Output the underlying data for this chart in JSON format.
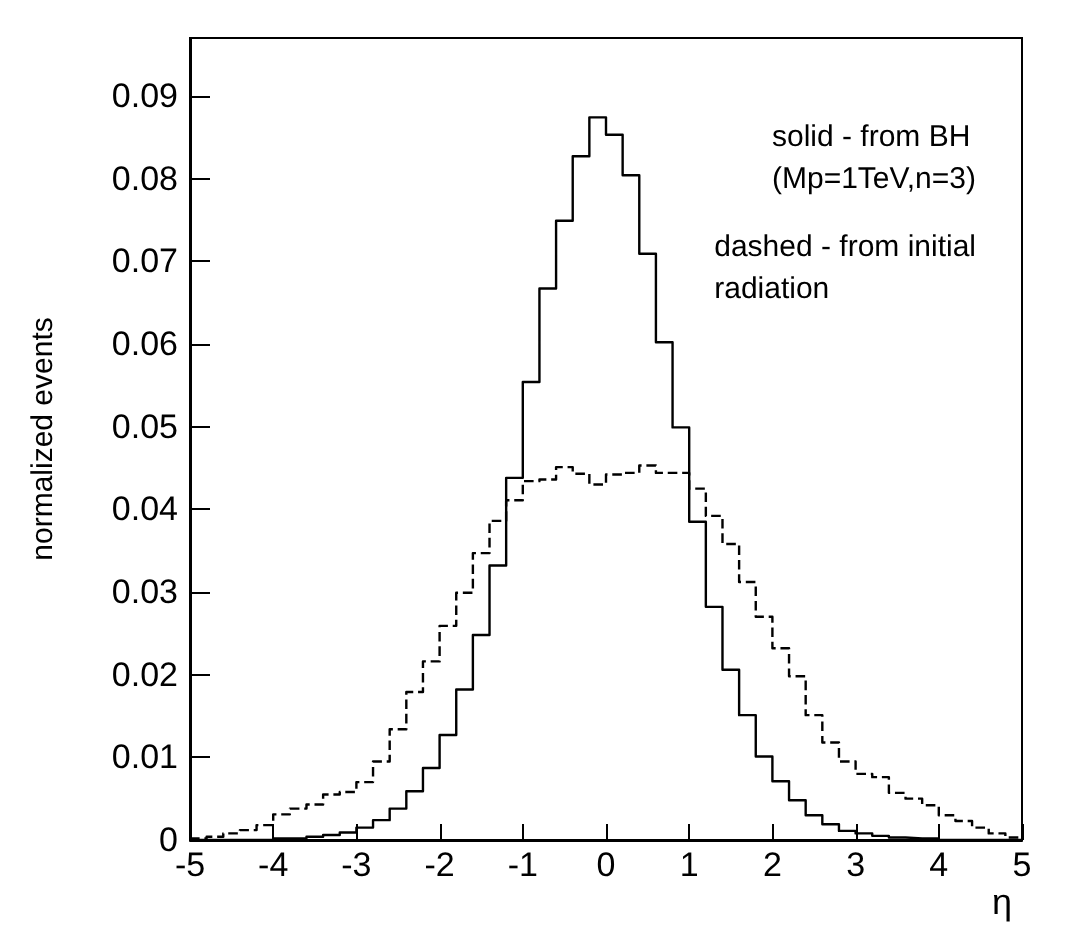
{
  "chart_data": {
    "type": "histogram",
    "xlabel": "η",
    "ylabel": "normalized events",
    "bins": [
      -5,
      -4.8,
      -4.6,
      -4.4,
      -4.2,
      -4,
      -3.8,
      -3.6,
      -3.4,
      -3.2,
      -3,
      -2.8,
      -2.6,
      -2.4,
      -2.2,
      -2,
      -1.8,
      -1.6,
      -1.4,
      -1.2,
      -1,
      -0.8,
      -0.6,
      -0.4,
      -0.2,
      0,
      0.2,
      0.4,
      0.6,
      0.8,
      1,
      1.2,
      1.4,
      1.6,
      1.8,
      2,
      2.2,
      2.4,
      2.6,
      2.8,
      3,
      3.2,
      3.4,
      3.6,
      3.8,
      4,
      4.2,
      4.4,
      4.6,
      4.8,
      5
    ],
    "series": [
      {
        "color": "#000000",
        "line_style": "solid",
        "values": [
          0,
          0,
          0,
          0,
          0,
          0.0002,
          0.0002,
          0.0004,
          0.0006,
          0.0009,
          0.0015,
          0.0024,
          0.0038,
          0.0059,
          0.0087,
          0.0127,
          0.0182,
          0.0248,
          0.0332,
          0.0438,
          0.0554,
          0.0667,
          0.0749,
          0.0827,
          0.0874,
          0.0853,
          0.0804,
          0.0709,
          0.0602,
          0.0499,
          0.0385,
          0.0282,
          0.0206,
          0.0151,
          0.0101,
          0.0071,
          0.0048,
          0.003,
          0.0019,
          0.0011,
          0.0008,
          0.0005,
          0.0003,
          0.0002,
          0.0002,
          0,
          0,
          0,
          0,
          0
        ]
      },
      {
        "color": "#000000",
        "line_style": "dashed",
        "values": [
          0.0002,
          0.0004,
          0.0008,
          0.0012,
          0.0018,
          0.0031,
          0.0038,
          0.0043,
          0.0055,
          0.0058,
          0.007,
          0.0095,
          0.0134,
          0.0179,
          0.0216,
          0.0259,
          0.0299,
          0.0347,
          0.0386,
          0.0411,
          0.0434,
          0.0436,
          0.0451,
          0.0443,
          0.043,
          0.0442,
          0.0444,
          0.0453,
          0.0444,
          0.0444,
          0.0425,
          0.0392,
          0.0358,
          0.0312,
          0.027,
          0.0232,
          0.0198,
          0.0151,
          0.0118,
          0.0095,
          0.008,
          0.0076,
          0.0057,
          0.005,
          0.0042,
          0.003,
          0.0023,
          0.0015,
          0.0008,
          0.0003
        ]
      }
    ],
    "xlim": [
      -5,
      5
    ],
    "xticks": [
      -5,
      -4,
      -3,
      -2,
      -1,
      0,
      1,
      2,
      3,
      4,
      5
    ],
    "ylim": [
      0,
      0.097
    ],
    "yticks": [
      0,
      0.01,
      0.02,
      0.03,
      0.04,
      0.05,
      0.06,
      0.07,
      0.08,
      0.09
    ],
    "annotations": [
      "solid - from BH\n(Mp=1TeV,n=3)",
      "dashed - from initial\nradiation"
    ]
  }
}
